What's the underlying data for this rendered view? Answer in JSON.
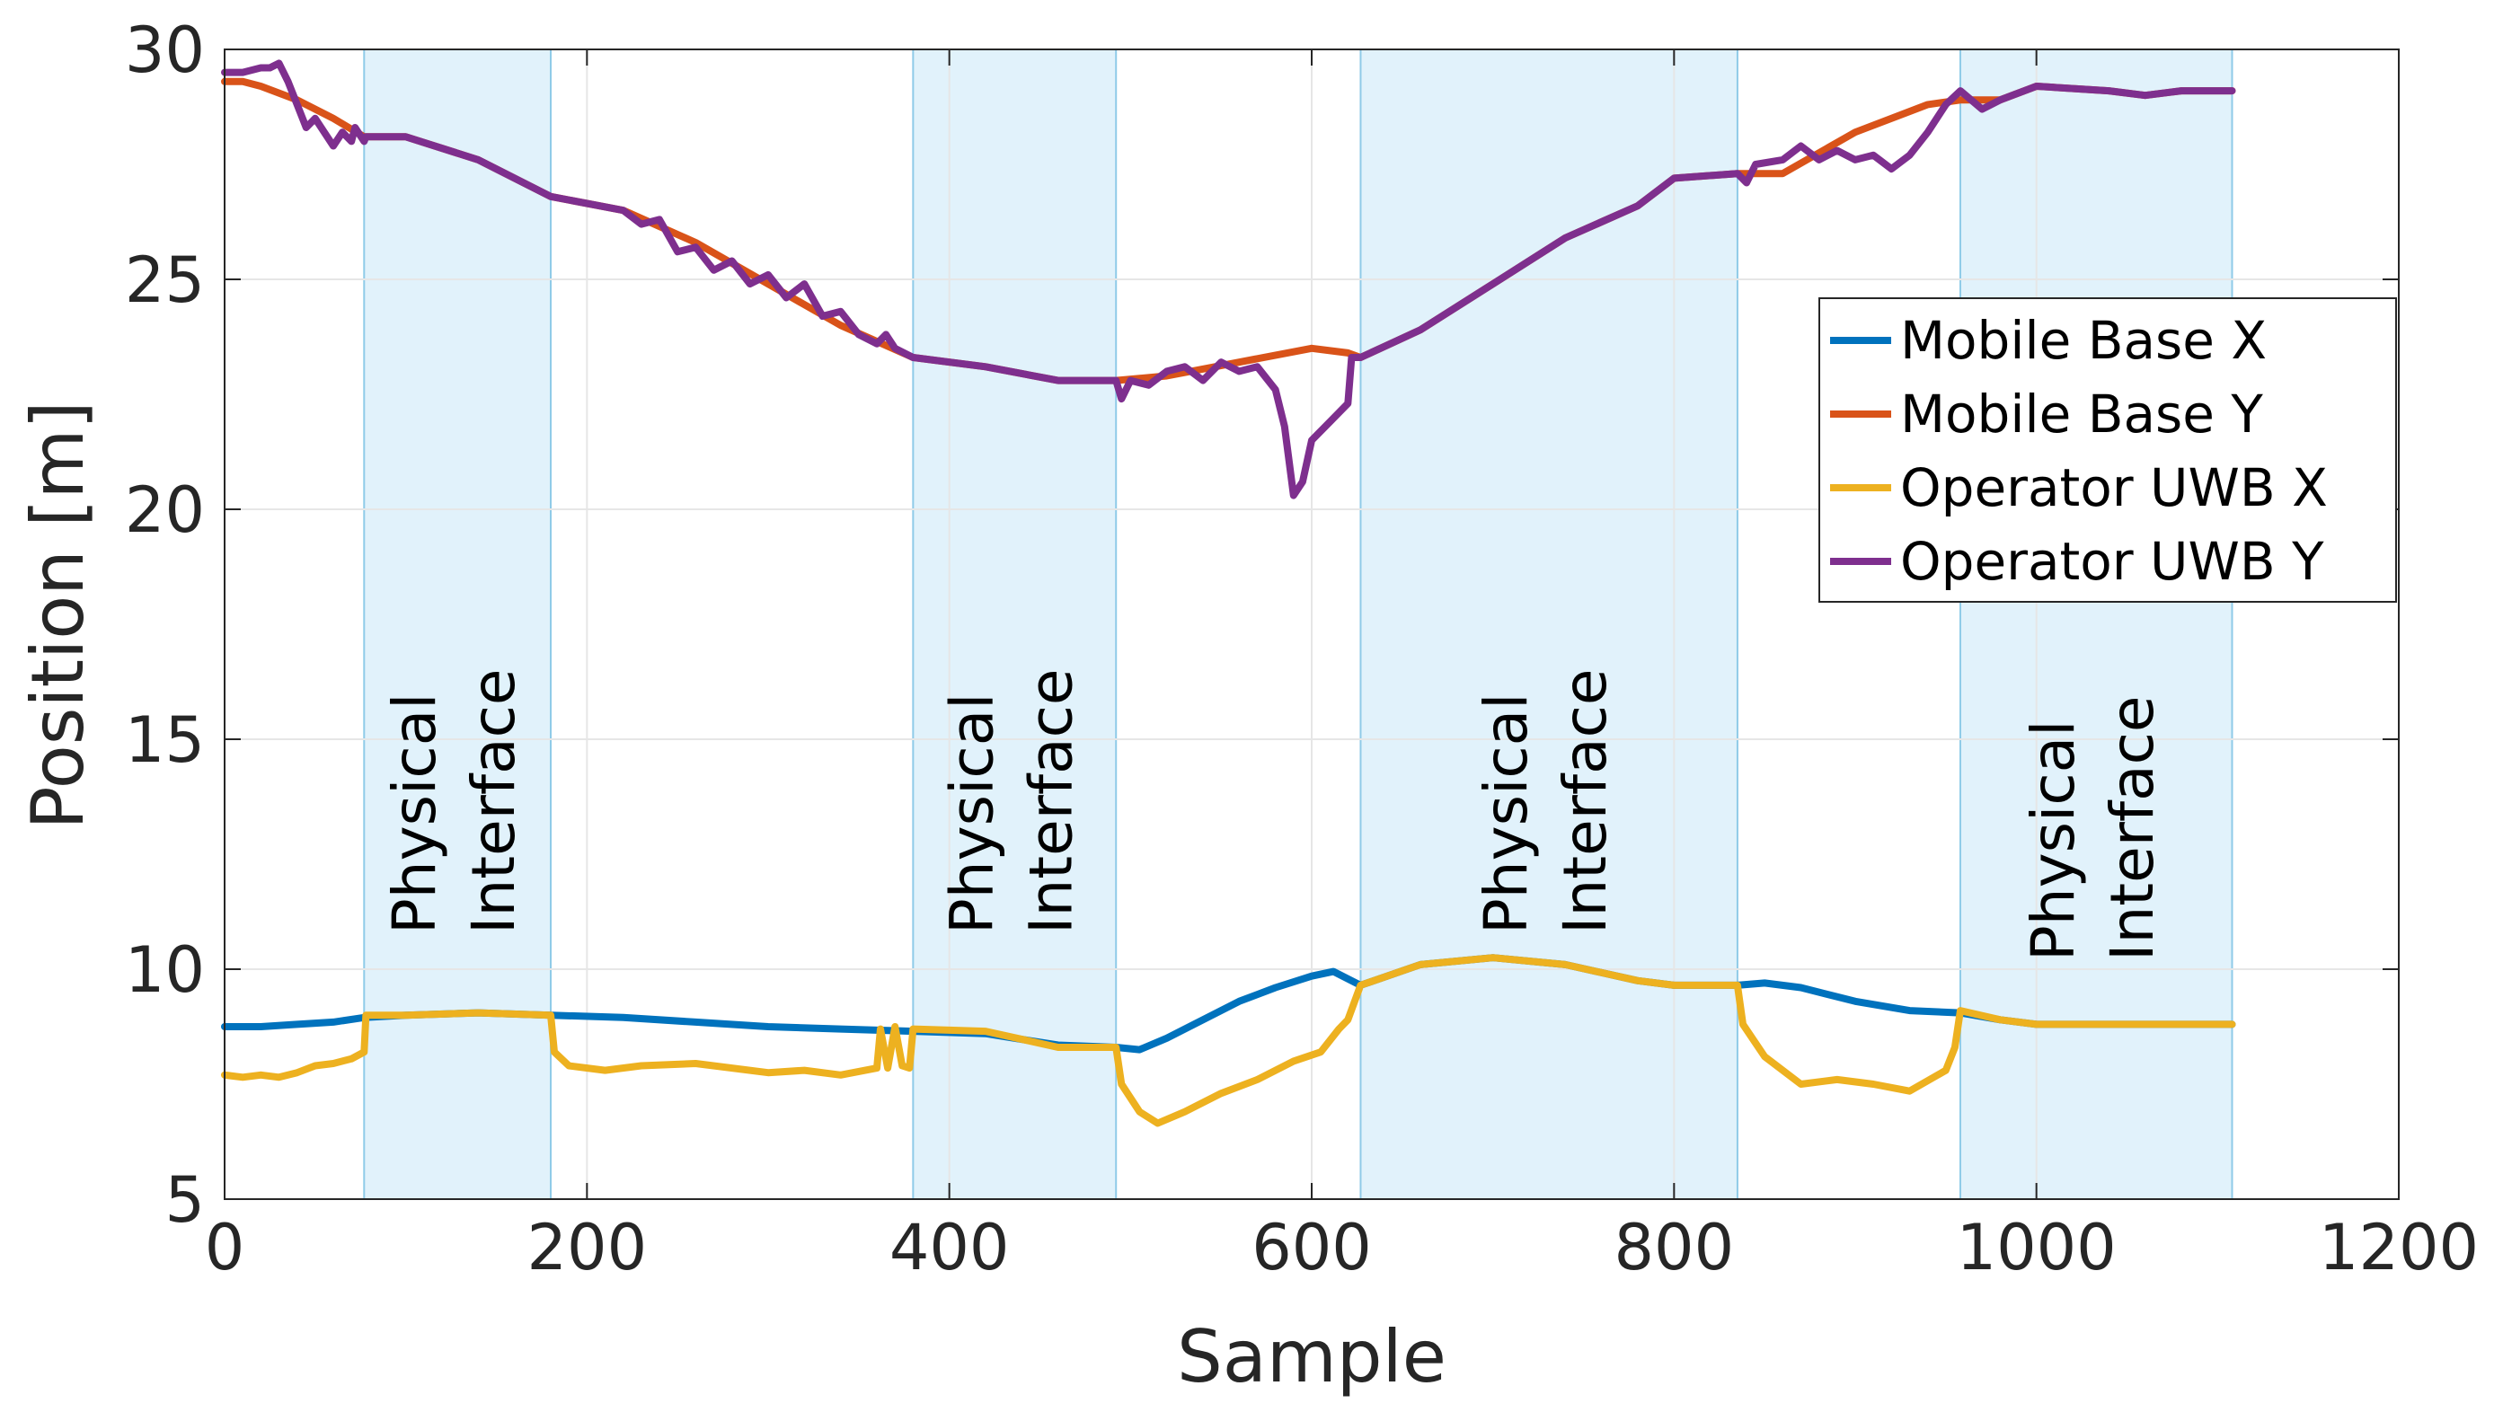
{
  "chart_data": {
    "type": "line",
    "title": "",
    "xlabel": "Sample",
    "ylabel": "Position [m]",
    "xlim": [
      0,
      1200
    ],
    "ylim": [
      5,
      30
    ],
    "xticks": [
      0,
      200,
      400,
      600,
      800,
      1000,
      1200
    ],
    "yticks": [
      5,
      10,
      15,
      20,
      25,
      30
    ],
    "grid": true,
    "legend_position": "top-right",
    "shaded_regions": [
      {
        "x_start": 77,
        "x_end": 180,
        "label_lines": [
          "Physical",
          "Interface"
        ]
      },
      {
        "x_start": 380,
        "x_end": 492,
        "label_lines": [
          "Physical",
          "Interface"
        ]
      },
      {
        "x_start": 627,
        "x_end": 835,
        "label_lines": [
          "Physical",
          "Interface"
        ]
      },
      {
        "x_start": 958,
        "x_end": 1108,
        "label_lines": [
          "Physical",
          "Interface"
        ]
      }
    ],
    "series": [
      {
        "name": "Mobile Base X",
        "color": "#0072BD",
        "x": [
          0,
          20,
          40,
          60,
          77,
          100,
          140,
          180,
          220,
          260,
          300,
          340,
          380,
          420,
          460,
          492,
          505,
          520,
          540,
          560,
          580,
          600,
          612,
          627,
          660,
          700,
          740,
          780,
          800,
          835,
          850,
          870,
          900,
          930,
          958,
          980,
          1000,
          1040,
          1060,
          1080,
          1108
        ],
        "y": [
          8.75,
          8.75,
          8.8,
          8.85,
          8.95,
          9.0,
          9.05,
          9.0,
          8.95,
          8.85,
          8.75,
          8.7,
          8.65,
          8.6,
          8.35,
          8.3,
          8.25,
          8.5,
          8.9,
          9.3,
          9.6,
          9.85,
          9.95,
          9.65,
          10.1,
          10.25,
          10.1,
          9.75,
          9.65,
          9.65,
          9.7,
          9.6,
          9.3,
          9.1,
          9.05,
          8.9,
          8.8,
          8.8,
          8.8,
          8.8,
          8.8
        ]
      },
      {
        "name": "Mobile Base Y",
        "color": "#D95319",
        "x": [
          0,
          10,
          20,
          40,
          60,
          77,
          100,
          140,
          180,
          220,
          260,
          300,
          340,
          380,
          420,
          460,
          492,
          520,
          560,
          600,
          620,
          627,
          660,
          700,
          740,
          780,
          800,
          835,
          860,
          900,
          940,
          958,
          980,
          1000,
          1040,
          1060,
          1080,
          1108
        ],
        "y": [
          29.3,
          29.3,
          29.2,
          28.9,
          28.5,
          28.1,
          28.1,
          27.6,
          26.8,
          26.5,
          25.8,
          24.9,
          24.0,
          23.3,
          23.1,
          22.8,
          22.8,
          22.9,
          23.2,
          23.5,
          23.4,
          23.3,
          23.9,
          24.9,
          25.9,
          26.6,
          27.2,
          27.3,
          27.3,
          28.2,
          28.8,
          28.9,
          28.9,
          29.2,
          29.1,
          29.0,
          29.1,
          29.1
        ]
      },
      {
        "name": "Operator UWB X",
        "color": "#EDB120",
        "x": [
          0,
          10,
          20,
          30,
          40,
          50,
          60,
          70,
          77,
          78,
          100,
          140,
          180,
          182,
          190,
          210,
          230,
          260,
          300,
          320,
          340,
          360,
          362,
          366,
          370,
          374,
          378,
          380,
          420,
          460,
          492,
          495,
          505,
          515,
          530,
          550,
          570,
          590,
          605,
          615,
          620,
          627,
          660,
          700,
          740,
          780,
          800,
          835,
          838,
          850,
          870,
          890,
          910,
          930,
          950,
          955,
          958,
          980,
          1000,
          1040,
          1060,
          1080,
          1108
        ],
        "y": [
          7.7,
          7.65,
          7.7,
          7.65,
          7.75,
          7.9,
          7.95,
          8.05,
          8.2,
          9.0,
          9.0,
          9.05,
          9.0,
          8.2,
          7.9,
          7.8,
          7.9,
          7.95,
          7.75,
          7.8,
          7.7,
          7.85,
          8.7,
          7.85,
          8.75,
          7.9,
          7.85,
          8.7,
          8.65,
          8.3,
          8.3,
          7.5,
          6.9,
          6.65,
          6.9,
          7.3,
          7.6,
          8.0,
          8.2,
          8.7,
          8.9,
          9.65,
          10.1,
          10.25,
          10.1,
          9.75,
          9.65,
          9.65,
          8.8,
          8.1,
          7.5,
          7.6,
          7.5,
          7.35,
          7.8,
          8.3,
          9.1,
          8.9,
          8.8,
          8.8,
          8.8,
          8.8,
          8.8
        ]
      },
      {
        "name": "Operator UWB Y",
        "color": "#7E2F8E",
        "x": [
          0,
          10,
          20,
          25,
          30,
          35,
          40,
          45,
          50,
          55,
          60,
          65,
          70,
          72,
          77,
          78,
          100,
          140,
          180,
          220,
          230,
          240,
          250,
          260,
          270,
          280,
          290,
          300,
          310,
          320,
          330,
          340,
          350,
          360,
          365,
          370,
          380,
          420,
          460,
          492,
          495,
          500,
          510,
          520,
          530,
          540,
          550,
          560,
          570,
          580,
          585,
          590,
          595,
          600,
          610,
          620,
          622,
          627,
          660,
          700,
          740,
          780,
          800,
          835,
          840,
          845,
          860,
          870,
          880,
          890,
          900,
          910,
          920,
          930,
          940,
          950,
          958,
          970,
          980,
          1000,
          1040,
          1060,
          1080,
          1108
        ],
        "y": [
          29.5,
          29.5,
          29.6,
          29.6,
          29.7,
          29.3,
          28.8,
          28.3,
          28.5,
          28.2,
          27.9,
          28.2,
          28.0,
          28.3,
          28.0,
          28.1,
          28.1,
          27.6,
          26.8,
          26.5,
          26.2,
          26.3,
          25.6,
          25.7,
          25.2,
          25.4,
          24.9,
          25.1,
          24.6,
          24.9,
          24.2,
          24.3,
          23.8,
          23.6,
          23.8,
          23.5,
          23.3,
          23.1,
          22.8,
          22.8,
          22.4,
          22.8,
          22.7,
          23.0,
          23.1,
          22.8,
          23.2,
          23.0,
          23.1,
          22.6,
          21.8,
          20.3,
          20.6,
          21.5,
          21.9,
          22.3,
          23.3,
          23.3,
          23.9,
          24.9,
          25.9,
          26.6,
          27.2,
          27.3,
          27.1,
          27.5,
          27.6,
          27.9,
          27.6,
          27.8,
          27.6,
          27.7,
          27.4,
          27.7,
          28.2,
          28.8,
          29.1,
          28.7,
          28.9,
          29.2,
          29.1,
          29.0,
          29.1,
          29.1
        ]
      }
    ]
  }
}
